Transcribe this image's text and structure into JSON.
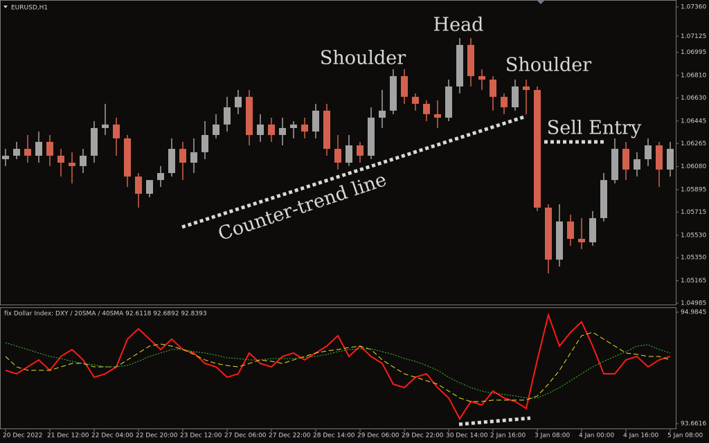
{
  "chart_data": [
    {
      "type": "candlestick",
      "title": "EURUSD,H1",
      "categories": [
        "20 Dec 2022",
        null,
        null,
        null,
        "21 Dec 12:00",
        null,
        null,
        null,
        "22 Dec 04:00",
        null,
        null,
        null,
        "22 Dec 20:00",
        null,
        null,
        null,
        "23 Dec 12:00",
        null,
        null,
        null,
        "27 Dec 06:00",
        null,
        null,
        null,
        "27 Dec 22:00",
        null,
        null,
        null,
        "28 Dec 14:00",
        null,
        null,
        null,
        "29 Dec 06:00",
        null,
        null,
        null,
        "29 Dec 22:00",
        null,
        null,
        null,
        "30 Dec 14:00",
        null,
        null,
        null,
        "2 Jan 16:00",
        null,
        null,
        null,
        "3 Jan 08:00",
        null,
        null,
        null,
        "4 Jan 00:00",
        null,
        null,
        null,
        "4 Jan 16:00",
        null,
        null,
        null,
        "5 Jan 08:00"
      ],
      "open": [
        1.06139,
        1.06167,
        1.06222,
        1.06167,
        1.06278,
        1.06167,
        1.06111,
        1.06084,
        1.06167,
        1.06389,
        1.06417,
        1.06306,
        1.06,
        1.05862,
        1.05972,
        1.06028,
        1.06222,
        1.06111,
        1.06195,
        1.06333,
        1.06417,
        1.06555,
        1.06639,
        1.06333,
        1.06417,
        1.06333,
        1.06389,
        1.06417,
        1.06361,
        1.06528,
        1.06222,
        1.06111,
        1.0625,
        1.06167,
        1.06472,
        1.06528,
        1.06805,
        1.06639,
        1.06583,
        1.065,
        1.06472,
        1.06722,
        1.07055,
        1.06805,
        1.06777,
        1.06639,
        1.06555,
        1.06722,
        1.06694,
        1.05751,
        1.05334,
        1.0564,
        1.05501,
        1.05473,
        1.05667,
        1.05972,
        1.06222,
        1.06056,
        1.06139,
        1.0625,
        1.06056
      ],
      "high": [
        1.06222,
        1.06278,
        1.06333,
        1.06361,
        1.06333,
        1.06222,
        1.06195,
        1.06222,
        1.06444,
        1.06583,
        1.06472,
        1.06333,
        1.06028,
        1.05972,
        1.06084,
        1.06306,
        1.06278,
        1.06306,
        1.06444,
        1.065,
        1.06639,
        1.06694,
        1.06694,
        1.065,
        1.06472,
        1.06472,
        1.06444,
        1.06472,
        1.06583,
        1.06583,
        1.06333,
        1.06333,
        1.06278,
        1.06555,
        1.06694,
        1.0686,
        1.0686,
        1.06666,
        1.06611,
        1.06611,
        1.06777,
        1.0711,
        1.0711,
        1.0686,
        1.06805,
        1.06666,
        1.06777,
        1.06777,
        1.06722,
        1.05778,
        1.05778,
        1.05695,
        1.05667,
        1.05723,
        1.06028,
        1.06306,
        1.06278,
        1.06195,
        1.06306,
        1.06278,
        1.06278
      ],
      "low": [
        1.06084,
        1.06139,
        1.06111,
        1.06111,
        1.06084,
        1.06,
        1.05945,
        1.06028,
        1.06111,
        1.06333,
        1.06167,
        1.05917,
        1.05751,
        1.05834,
        1.05917,
        1.06,
        1.05972,
        1.06028,
        1.06139,
        1.06306,
        1.06361,
        1.065,
        1.0625,
        1.06278,
        1.06278,
        1.0625,
        1.06306,
        1.06306,
        1.06306,
        1.06167,
        1.06056,
        1.06084,
        1.06111,
        1.06139,
        1.06389,
        1.065,
        1.06583,
        1.06528,
        1.06444,
        1.06389,
        1.06444,
        1.06666,
        1.06722,
        1.06694,
        1.06528,
        1.065,
        1.06528,
        1.065,
        1.05723,
        1.05223,
        1.05279,
        1.05445,
        1.05418,
        1.05445,
        1.0564,
        1.05945,
        1.05972,
        1.06,
        1.06084,
        1.05917,
        1.06
      ],
      "close": [
        1.06167,
        1.06222,
        1.06167,
        1.06278,
        1.06167,
        1.06111,
        1.06084,
        1.06167,
        1.06389,
        1.06417,
        1.06306,
        1.06,
        1.05862,
        1.05972,
        1.06028,
        1.06222,
        1.06111,
        1.06195,
        1.06333,
        1.06417,
        1.06555,
        1.06639,
        1.06333,
        1.06417,
        1.06333,
        1.06389,
        1.06417,
        1.06361,
        1.06528,
        1.06222,
        1.06111,
        1.0625,
        1.06167,
        1.06472,
        1.06528,
        1.06805,
        1.06639,
        1.06583,
        1.065,
        1.06472,
        1.06722,
        1.07055,
        1.06805,
        1.06777,
        1.06639,
        1.06555,
        1.06722,
        1.06694,
        1.05751,
        1.05334,
        1.0564,
        1.05501,
        1.05473,
        1.05667,
        1.05972,
        1.06222,
        1.06056,
        1.06139,
        1.0625,
        1.06056,
        1.06222
      ],
      "up_color": "#a3a3a3",
      "down_color": "#d4614e",
      "ylim": [
        1.04974,
        1.07404
      ],
      "yticks": [
        {
          "value": 1.0736,
          "label": "1.07360"
        },
        1.07125,
        1.06995,
        {
          "value": 1.0681,
          "label": "1.06810"
        },
        {
          "value": 1.0663,
          "label": "1.06630"
        },
        1.06445,
        1.06265,
        {
          "value": 1.0608,
          "label": "1.06080"
        },
        1.05895,
        1.05715,
        {
          "value": 1.0553,
          "label": "1.05530"
        },
        {
          "value": 1.0535,
          "label": "1.05350"
        },
        1.05165,
        1.04985
      ],
      "annotations": [
        "Shoulder",
        "Head",
        "Shoulder",
        "Counter-trend line",
        "Sell Entry"
      ]
    },
    {
      "type": "line",
      "title": "fix Dollar Index: DXY / 20SMA / 40SMA 92.6118 92.6892 92.8393",
      "series": [
        {
          "color": "#ff1a1a",
          "style": "solid",
          "values": [
            94.294,
            94.253,
            94.335,
            94.418,
            94.294,
            94.459,
            94.541,
            94.418,
            94.212,
            94.253,
            94.335,
            94.664,
            94.787,
            94.664,
            94.541,
            94.664,
            94.541,
            94.5,
            94.376,
            94.335,
            94.212,
            94.253,
            94.5,
            94.376,
            94.335,
            94.459,
            94.5,
            94.418,
            94.5,
            94.582,
            94.705,
            94.459,
            94.582,
            94.459,
            94.376,
            94.13,
            94.089,
            94.212,
            94.253,
            94.089,
            93.966,
            93.719,
            93.924,
            93.883,
            94.048,
            93.966,
            93.924,
            93.842,
            94.418,
            94.952,
            94.582,
            94.746,
            94.869,
            94.582,
            94.253,
            94.253,
            94.418,
            94.459,
            94.335,
            94.418,
            94.459
          ]
        },
        {
          "color": "#e6e62e",
          "style": "dashed",
          "values": [
            94.459,
            94.335,
            94.294,
            94.294,
            94.294,
            94.335,
            94.376,
            94.376,
            94.335,
            94.335,
            94.335,
            94.418,
            94.5,
            94.582,
            94.607,
            94.582,
            94.541,
            94.483,
            94.418,
            94.376,
            94.352,
            94.335,
            94.376,
            94.418,
            94.401,
            94.376,
            94.418,
            94.459,
            94.5,
            94.524,
            94.541,
            94.565,
            94.582,
            94.541,
            94.418,
            94.335,
            94.253,
            94.212,
            94.171,
            94.13,
            94.048,
            93.966,
            93.924,
            93.924,
            93.941,
            93.941,
            93.941,
            93.941,
            93.99,
            94.13,
            94.294,
            94.5,
            94.705,
            94.746,
            94.664,
            94.582,
            94.5,
            94.483,
            94.459,
            94.459,
            94.418
          ]
        },
        {
          "color": "#3cc43c",
          "style": "dotted",
          "values": [
            94.623,
            94.582,
            94.541,
            94.5,
            94.459,
            94.434,
            94.401,
            94.376,
            94.36,
            94.335,
            94.335,
            94.352,
            94.401,
            94.459,
            94.5,
            94.541,
            94.541,
            94.516,
            94.5,
            94.475,
            94.442,
            94.434,
            94.418,
            94.418,
            94.434,
            94.434,
            94.434,
            94.451,
            94.459,
            94.483,
            94.516,
            94.541,
            94.549,
            94.549,
            94.516,
            94.483,
            94.434,
            94.401,
            94.352,
            94.294,
            94.212,
            94.146,
            94.089,
            94.048,
            94.023,
            94.007,
            93.99,
            93.966,
            93.966,
            94.023,
            94.089,
            94.171,
            94.253,
            94.335,
            94.401,
            94.459,
            94.516,
            94.582,
            94.598,
            94.541,
            94.5
          ]
        }
      ],
      "ylim": [
        93.596,
        95.042
      ],
      "yticks": [
        94.9845,
        93.6616
      ]
    }
  ]
}
